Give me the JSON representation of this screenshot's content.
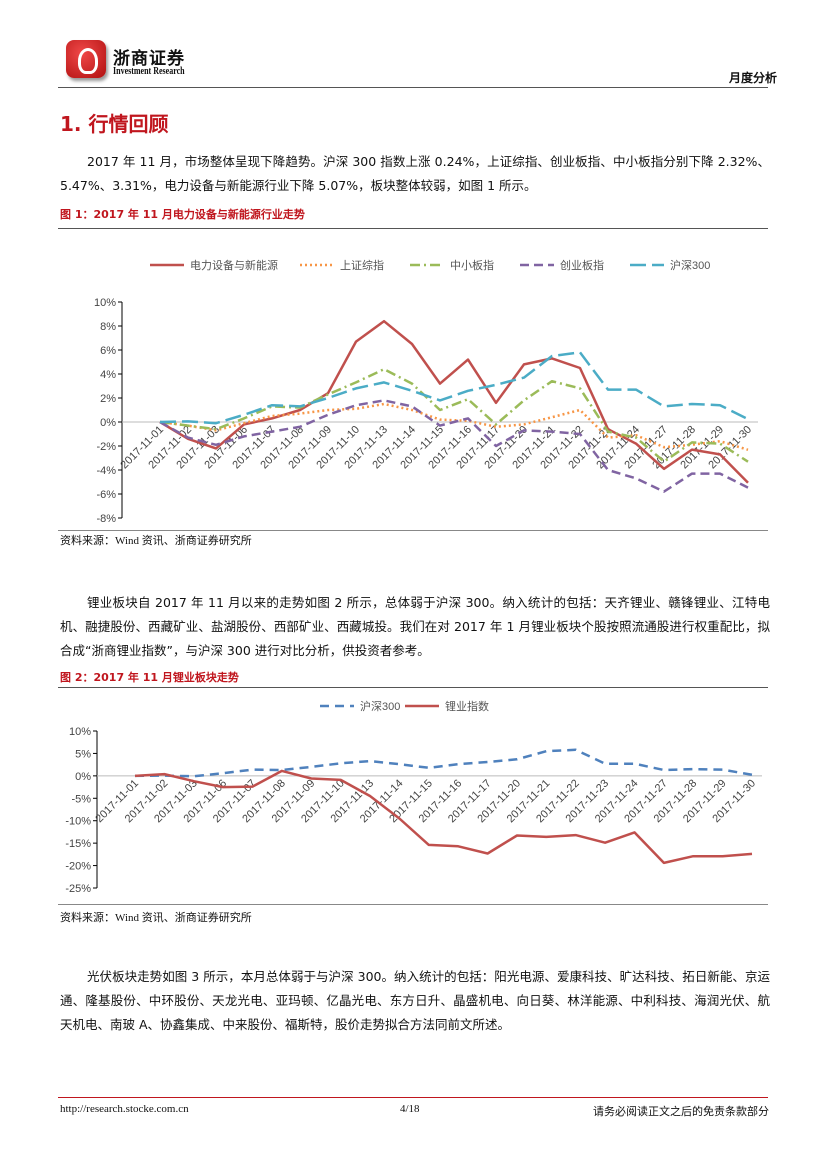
{
  "header": {
    "brand_cn": "浙商证券",
    "brand_en": "Investment Research",
    "report_type": "月度分析"
  },
  "section": {
    "title": "1. 行情回顾"
  },
  "paragraphs": [
    "2017 年 11 月，市场整体呈现下降趋势。沪深 300 指数上涨 0.24%，上证综指、创业板指、中小板指分别下降 2.32%、5.47%、3.31%，电力设备与新能源行业下降 5.07%，板块整体较弱，如图 1 所示。",
    "锂业板块自 2017 年 11 月以来的走势如图 2 所示，总体弱于沪深 300。纳入统计的包括：天齐锂业、赣锋锂业、江特电机、融捷股份、西藏矿业、盐湖股份、西部矿业、西藏城投。我们在对 2017 年 1 月锂业板块个股按照流通股进行权重配比，拟合成“浙商锂业指数”，与沪深 300 进行对比分析，供投资者参考。",
    "光伏板块走势如图 3 所示，本月总体弱于与沪深 300。纳入统计的包括：阳光电源、爱康科技、旷达科技、拓日新能、京运通、隆基股份、中环股份、天龙光电、亚玛顿、亿晶光电、东方日升、晶盛机电、向日葵、林洋能源、中利科技、海润光伏、航天机电、南玻 A、协鑫集成、中来股份、福斯特，股价走势拟合方法同前文所述。"
  ],
  "figures": [
    {
      "caption": "图  1：2017 年 11 月电力设备与新能源行业走势",
      "source": "资料来源：Wind 资讯、浙商证券研究所"
    },
    {
      "caption": "图  2：2017 年 11 月锂业板块走势",
      "source": "资料来源：Wind 资讯、浙商证券研究所"
    }
  ],
  "footer": {
    "url": "http://research.stocke.com.cn",
    "page": "4/18",
    "disclaimer": "请务必阅读正文之后的免责条款部分"
  },
  "chart_data": [
    {
      "type": "line",
      "title": "",
      "ylabel": "",
      "xlabel": "",
      "ylim": [
        -8,
        10
      ],
      "yticks": [
        10,
        8,
        6,
        4,
        2,
        0,
        -2,
        -4,
        -6,
        -8
      ],
      "ytick_suffix": "%",
      "legend": "top",
      "categories": [
        "2017-11-01",
        "2017-11-02",
        "2017-11-03",
        "2017-11-06",
        "2017-11-07",
        "2017-11-08",
        "2017-11-09",
        "2017-11-10",
        "2017-11-13",
        "2017-11-14",
        "2017-11-15",
        "2017-11-16",
        "2017-11-17",
        "2017-11-20",
        "2017-11-21",
        "2017-11-22",
        "2017-11-23",
        "2017-11-24",
        "2017-11-27",
        "2017-11-28",
        "2017-11-29",
        "2017-11-30"
      ],
      "series": [
        {
          "name": "电力设备与新能源",
          "color": "#c0504d",
          "dash": "",
          "values": [
            0,
            -1.4,
            -2.2,
            -0.2,
            0.3,
            1.0,
            2.4,
            6.7,
            8.4,
            6.5,
            3.2,
            5.2,
            1.6,
            4.8,
            5.3,
            4.5,
            -0.6,
            -1.8,
            -3.9,
            -2.3,
            -2.7,
            -5.07
          ]
        },
        {
          "name": "上证综指",
          "color": "#f79646",
          "dash": "2 3",
          "values": [
            0,
            -0.3,
            -0.7,
            -0.1,
            0.5,
            0.7,
            1.0,
            1.1,
            1.5,
            1.0,
            0.2,
            0.1,
            -0.4,
            -0.2,
            0.4,
            1.0,
            -1.3,
            -1.1,
            -2.1,
            -1.9,
            -1.6,
            -2.32
          ]
        },
        {
          "name": "中小板指",
          "color": "#9bbb59",
          "dash": "10 4 2 4",
          "values": [
            0,
            -0.3,
            -0.6,
            0.3,
            1.3,
            1.2,
            2.3,
            3.3,
            4.4,
            3.2,
            1.0,
            1.9,
            -0.2,
            1.8,
            3.4,
            2.8,
            -0.8,
            -1.3,
            -3.3,
            -1.7,
            -1.8,
            -3.31
          ]
        },
        {
          "name": "创业板指",
          "color": "#8064a2",
          "dash": "9 5",
          "values": [
            0,
            -1.3,
            -1.9,
            -1.2,
            -0.8,
            -0.4,
            0.6,
            1.4,
            1.8,
            1.3,
            -0.3,
            0.3,
            -2.0,
            -0.7,
            -0.8,
            -1.0,
            -4.0,
            -4.7,
            -5.8,
            -4.3,
            -4.3,
            -5.47
          ]
        },
        {
          "name": "沪深300",
          "color": "#4bacc6",
          "dash": "16 6",
          "values": [
            0,
            0.05,
            -0.1,
            0.6,
            1.4,
            1.3,
            2.0,
            2.8,
            3.3,
            2.6,
            1.8,
            2.6,
            3.1,
            3.7,
            5.5,
            5.8,
            2.7,
            2.7,
            1.3,
            1.5,
            1.4,
            0.24
          ]
        }
      ]
    },
    {
      "type": "line",
      "title": "",
      "ylabel": "",
      "xlabel": "",
      "ylim": [
        -25,
        10
      ],
      "yticks": [
        10,
        5,
        0,
        -5,
        -10,
        -15,
        -20,
        -25
      ],
      "ytick_suffix": "%",
      "legend": "top",
      "categories": [
        "2017-11-01",
        "2017-11-02",
        "2017-11-03",
        "2017-11-06",
        "2017-11-07",
        "2017-11-08",
        "2017-11-09",
        "2017-11-10",
        "2017-11-13",
        "2017-11-14",
        "2017-11-15",
        "2017-11-16",
        "2017-11-17",
        "2017-11-20",
        "2017-11-21",
        "2017-11-22",
        "2017-11-23",
        "2017-11-24",
        "2017-11-27",
        "2017-11-28",
        "2017-11-29",
        "2017-11-30"
      ],
      "series": [
        {
          "name": "沪深300",
          "color": "#4f81bd",
          "dash": "9 6",
          "values": [
            0,
            0.05,
            -0.1,
            0.6,
            1.4,
            1.3,
            2.0,
            2.8,
            3.3,
            2.6,
            1.8,
            2.6,
            3.1,
            3.7,
            5.5,
            5.8,
            2.7,
            2.7,
            1.3,
            1.5,
            1.4,
            0.24
          ]
        },
        {
          "name": "锂业指数",
          "color": "#c0504d",
          "dash": "",
          "values": [
            0,
            0.4,
            -1.2,
            -2.5,
            -2.4,
            1.1,
            -0.6,
            -0.9,
            -4.5,
            -9.5,
            -15.4,
            -15.7,
            -17.3,
            -13.3,
            -13.6,
            -13.2,
            -14.9,
            -12.6,
            -19.4,
            -17.9,
            -17.9,
            -17.4
          ]
        }
      ]
    }
  ]
}
